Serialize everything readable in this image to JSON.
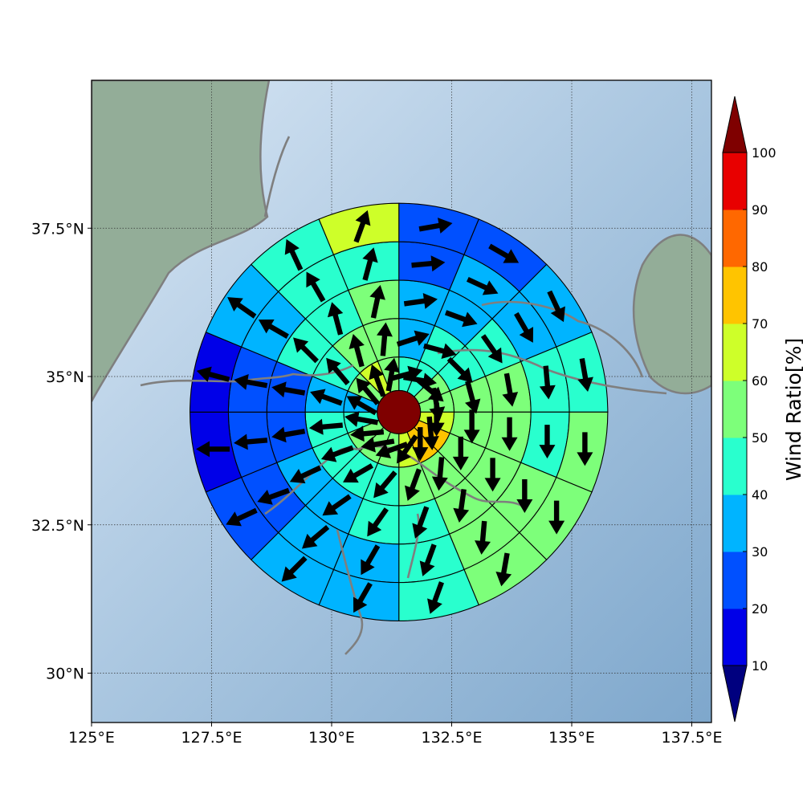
{
  "chart_data": {
    "type": "heatmap",
    "title": "",
    "xlabel": "",
    "ylabel": "",
    "x_range": [
      125,
      138.0
    ],
    "y_range": [
      28.8,
      39.85
    ],
    "x_ticks": [
      {
        "value": 125.0,
        "label": "125°E"
      },
      {
        "value": 127.5,
        "label": "127.5°E"
      },
      {
        "value": 130.0,
        "label": "130°E"
      },
      {
        "value": 132.5,
        "label": "132.5°E"
      },
      {
        "value": 135.0,
        "label": "135°E"
      },
      {
        "value": 137.5,
        "label": "137.5°E"
      }
    ],
    "y_ticks": [
      {
        "value": 30.0,
        "label": "30°N"
      },
      {
        "value": 32.5,
        "label": "32.5°N"
      },
      {
        "value": 35.0,
        "label": "35°N"
      },
      {
        "value": 37.5,
        "label": "37.5°N"
      }
    ],
    "grid": true,
    "basemap": "shaded relief with coastlines",
    "center": {
      "lon": 131.4,
      "lat": 34.4
    },
    "ring_radii_deg": [
      0.45,
      1.15,
      1.95,
      2.75,
      3.55,
      4.35
    ],
    "sectors_per_ring": 16,
    "ring_values": [
      [
        40,
        40,
        50,
        50,
        60,
        70,
        70,
        60,
        50,
        50,
        50,
        40,
        30,
        50,
        60,
        50
      ],
      [
        30,
        40,
        40,
        50,
        50,
        50,
        50,
        50,
        40,
        40,
        40,
        40,
        30,
        40,
        50,
        50
      ],
      [
        30,
        30,
        40,
        50,
        50,
        50,
        50,
        40,
        40,
        30,
        30,
        20,
        20,
        40,
        40,
        50
      ],
      [
        20,
        30,
        30,
        40,
        40,
        50,
        50,
        40,
        30,
        30,
        20,
        20,
        20,
        30,
        40,
        40
      ],
      [
        20,
        20,
        30,
        40,
        50,
        50,
        50,
        40,
        30,
        30,
        20,
        10,
        10,
        30,
        40,
        60
      ]
    ],
    "ring_winds": [
      [
        75,
        100,
        130,
        170,
        180,
        175,
        180,
        215,
        250,
        260,
        265,
        280,
        300,
        320,
        340,
        10
      ],
      [
        72,
        105,
        135,
        165,
        180,
        180,
        185,
        200,
        220,
        240,
        250,
        265,
        290,
        320,
        345,
        5
      ],
      [
        82,
        110,
        145,
        170,
        180,
        180,
        188,
        200,
        215,
        235,
        245,
        260,
        280,
        315,
        345,
        12
      ],
      [
        85,
        115,
        150,
        175,
        180,
        180,
        185,
        200,
        210,
        230,
        250,
        265,
        280,
        300,
        330,
        15
      ],
      [
        80,
        120,
        155,
        170,
        180,
        180,
        190,
        200,
        210,
        225,
        245,
        270,
        285,
        305,
        335,
        20
      ]
    ],
    "center_value": 100,
    "colorbar": {
      "label": "Wind Ratio[%]",
      "levels": [
        10,
        20,
        30,
        40,
        50,
        60,
        70,
        80,
        90,
        100
      ],
      "tick_labels": [
        "10",
        "20",
        "30",
        "40",
        "50",
        "60",
        "70",
        "80",
        "90",
        "100"
      ],
      "colors": [
        "#0000e8",
        "#0050ff",
        "#00b4ff",
        "#29ffce",
        "#7dff7a",
        "#ceff29",
        "#ffc400",
        "#ff6800",
        "#e80000"
      ],
      "under_color": "#00007f",
      "over_color": "#7f0000",
      "extend": "both"
    }
  }
}
